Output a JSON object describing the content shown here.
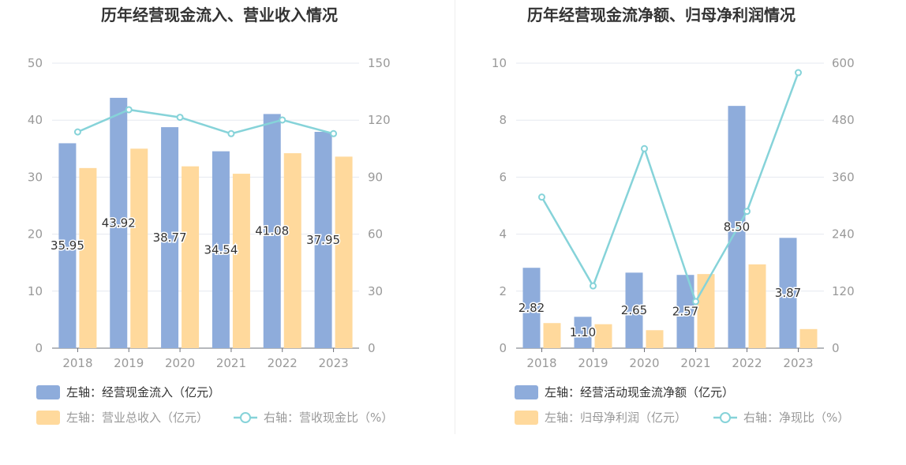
{
  "chart_data": [
    {
      "type": "bar",
      "title": "历年经营现金流入、营业收入情况",
      "categories": [
        "2018",
        "2019",
        "2020",
        "2021",
        "2022",
        "2023"
      ],
      "left_axis": {
        "ticks": [
          "0",
          "10",
          "20",
          "30",
          "40",
          "50"
        ],
        "ylim": [
          0,
          50
        ]
      },
      "right_axis": {
        "ticks": [
          "0",
          "30",
          "60",
          "90",
          "120",
          "150"
        ],
        "ylim": [
          0,
          150
        ]
      },
      "series": [
        {
          "name": "左轴：经营现金流入（亿元）",
          "type": "bar",
          "axis": "left",
          "color": "#8eacdb",
          "values": [
            35.95,
            43.92,
            38.77,
            34.54,
            41.08,
            37.95
          ],
          "labels": [
            "35.95",
            "43.92",
            "38.77",
            "34.54",
            "41.08",
            "37.95"
          ]
        },
        {
          "name": "左轴：营业总收入（亿元）",
          "type": "bar",
          "axis": "left",
          "color": "#ffd99c",
          "values": [
            31.6,
            35.0,
            31.9,
            30.6,
            34.2,
            33.6
          ]
        },
        {
          "name": "右轴：营收现金比（%）",
          "type": "line",
          "axis": "right",
          "color": "#86d3d9",
          "values": [
            113.8,
            125.5,
            121.5,
            112.9,
            120.1,
            112.9
          ]
        }
      ],
      "legend_text_colors": [
        "#333333",
        "#999999",
        "#999999"
      ],
      "grid": true
    },
    {
      "type": "bar",
      "title": "历年经营现金流净额、归母净利润情况",
      "categories": [
        "2018",
        "2019",
        "2020",
        "2021",
        "2022",
        "2023"
      ],
      "left_axis": {
        "ticks": [
          "0",
          "2",
          "4",
          "6",
          "8",
          "10"
        ],
        "ylim": [
          0,
          10
        ]
      },
      "right_axis": {
        "ticks": [
          "0",
          "120",
          "240",
          "360",
          "480",
          "600"
        ],
        "ylim": [
          0,
          600
        ]
      },
      "series": [
        {
          "name": "左轴：经营活动现金流净额（亿元）",
          "type": "bar",
          "axis": "left",
          "color": "#8eacdb",
          "values": [
            2.82,
            1.1,
            2.65,
            2.57,
            8.5,
            3.87
          ],
          "labels": [
            "2.82",
            "1.10",
            "2.65",
            "2.57",
            "8.50",
            "3.87"
          ]
        },
        {
          "name": "左轴：归母净利润（亿元）",
          "type": "bar",
          "axis": "left",
          "color": "#ffd99c",
          "values": [
            0.88,
            0.84,
            0.63,
            2.6,
            2.94,
            0.67
          ]
        },
        {
          "name": "右轴：净现比（%）",
          "type": "line",
          "axis": "right",
          "color": "#86d3d9",
          "values": [
            318,
            131,
            420,
            98,
            288,
            580
          ]
        }
      ],
      "legend_text_colors": [
        "#333333",
        "#999999",
        "#999999"
      ],
      "grid": true
    }
  ]
}
